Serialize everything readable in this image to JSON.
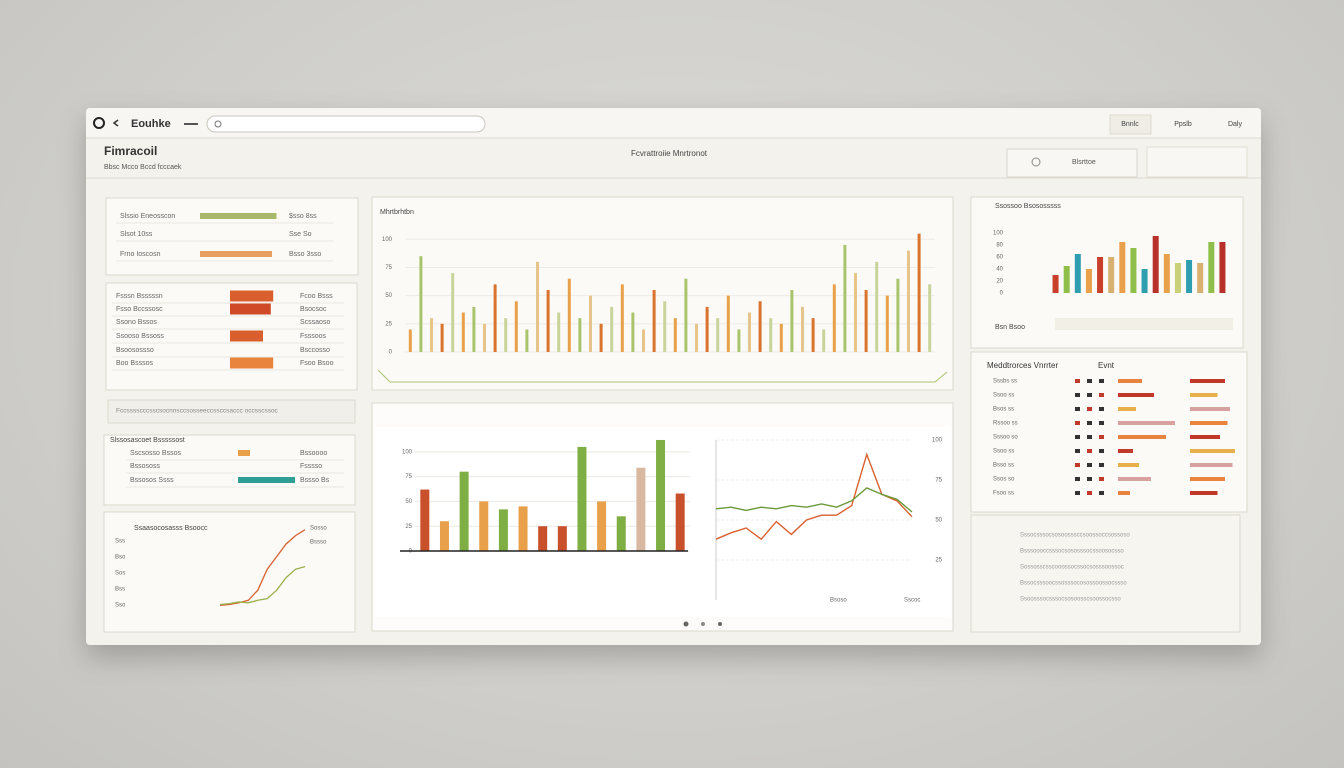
{
  "browser": {
    "title": "Eouhke",
    "buttons": [
      "Bnnlc",
      "Ppslb",
      "Daly"
    ]
  },
  "header": {
    "title": "Fimracoil",
    "subtitle": "Bbsc  Mcco  Bccd  fcccaek",
    "center": "Fcvrattroiie Mnrtronot",
    "filter": "Blsrttoe"
  },
  "summary": {
    "rows": [
      {
        "label": "Slssio Eneosscon",
        "amount": "$sso 8ss",
        "share": 85,
        "color": "#a8b86a"
      },
      {
        "label": "Slsot 10ss",
        "amount": "Sse So"
      },
      {
        "label": "Frno Ioscosn",
        "amount": "Bsso 3sso",
        "share": 80,
        "color": "#e8a060"
      }
    ]
  },
  "ranking": {
    "rows": [
      {
        "label": "Fsssn Bsssssn",
        "amount": "Fcoo Bsss",
        "share": 72,
        "color": "#d9602e"
      },
      {
        "label": "Fsso Bccssosc",
        "amount": "Bsocsoc",
        "share": 68,
        "color": "#d04a28"
      },
      {
        "label": "Ssono Bssos",
        "amount": "Scssaoso"
      },
      {
        "label": "Ssooso Bssoss",
        "amount": "Fsssoos",
        "share": 55,
        "color": "#d9602e"
      },
      {
        "label": "Bsoosossso",
        "amount": "Bsccosso"
      },
      {
        "label": "Boo Bsssos",
        "amount": "Fsoo Bsoo",
        "share": 72,
        "color": "#e8843e"
      }
    ]
  },
  "strip": "Fccsssscccsscsocnnsccsosseeccssccsaccc occsscssoc",
  "accounts": {
    "title": "Slssosascoet    Bsssssost",
    "rows": [
      {
        "label": "Sscsosso Bssos",
        "amount": "Bssoooo",
        "share": 20,
        "color": "#e8a04a"
      },
      {
        "label": "Bssososs",
        "amount": "Fsssso"
      },
      {
        "label": "Bssosos Ssss",
        "amount": "Bssso Bs",
        "share": 95,
        "color": "#2f9e94"
      }
    ]
  },
  "trend": {
    "title": "Ssaasocosasss Bsoocc",
    "ylim": [
      0,
      100
    ],
    "ylabels": [
      "Sss",
      "Bso",
      "Sos",
      "Bss",
      "Sso"
    ],
    "series": [
      {
        "name": "Sosso",
        "color": "#d9602e",
        "values": [
          2,
          3,
          5,
          8,
          20,
          45,
          60,
          75,
          85,
          92
        ]
      },
      {
        "name": "Bssso",
        "color": "#9ab04a",
        "values": [
          3,
          4,
          6,
          5,
          8,
          10,
          20,
          35,
          45,
          48
        ]
      }
    ]
  },
  "main_chart": {
    "type": "bar",
    "title": "Mhrtbrhtbn",
    "ylim": [
      0,
      110
    ],
    "yticks": [
      0,
      25,
      50,
      75,
      100
    ],
    "grid": true,
    "colors": [
      "#e8a04a",
      "#a9c46c",
      "#e6c48a",
      "#d9732e",
      "#c8d49a"
    ],
    "values": [
      20,
      85,
      30,
      25,
      70,
      35,
      40,
      25,
      60,
      30,
      45,
      20,
      80,
      55,
      35,
      65,
      30,
      50,
      25,
      40,
      60,
      35,
      20,
      55,
      45,
      30,
      65,
      25,
      40,
      30,
      50,
      20,
      35,
      45,
      30,
      25,
      55,
      40,
      30,
      20,
      60,
      95,
      70,
      55,
      80,
      50,
      65,
      90,
      105,
      60
    ]
  },
  "lower_chart": {
    "type": "bar",
    "ylim": [
      0,
      115
    ],
    "yticks": [
      0,
      25,
      50,
      75,
      100
    ],
    "grid": true,
    "values": [
      62,
      30,
      80,
      50,
      42,
      45,
      25,
      25,
      105,
      50,
      35,
      84,
      112,
      58
    ],
    "colors": [
      "#c8502a",
      "#e8a04a",
      "#7fae44",
      "#e8a04a",
      "#7fae44",
      "#e8a04a",
      "#c8502a",
      "#c8502a",
      "#7fae44",
      "#e8a04a",
      "#7fae44",
      "#d8b8a0",
      "#7fae44",
      "#c8502a"
    ]
  },
  "line_chart": {
    "type": "line",
    "ylim": [
      0,
      100
    ],
    "yticks": [
      25,
      50,
      75,
      100
    ],
    "grid": true,
    "series": [
      {
        "name": "Bsoso",
        "color": "#d9602e",
        "values": [
          38,
          42,
          45,
          38,
          49,
          41,
          50,
          53,
          53,
          59,
          91,
          66,
          62,
          52
        ]
      },
      {
        "name": "Sscoc",
        "color": "#6a9a3a",
        "values": [
          57,
          58,
          56,
          58,
          57,
          59,
          58,
          60,
          58,
          62,
          70,
          66,
          63,
          55
        ]
      }
    ]
  },
  "side_chart": {
    "type": "bar",
    "title": "Ssossoo Bsososssss",
    "ylim": [
      0,
      100
    ],
    "yticks": [
      0,
      20,
      40,
      60,
      80,
      100
    ],
    "footer": "Bsn  Bsoo",
    "values": [
      30,
      45,
      65,
      40,
      60,
      60,
      85,
      75,
      40,
      95,
      65,
      50,
      55,
      50,
      85,
      85
    ],
    "colors": [
      "#c8402a",
      "#8fbf4a",
      "#2f9eb0",
      "#e8a04a",
      "#c8402a",
      "#d8b070",
      "#e8a04a",
      "#8fbf4a",
      "#2f9eb0",
      "#b8302a",
      "#e8a04a",
      "#c8d07a",
      "#2f9eb0",
      "#d8b070",
      "#8fbf4a",
      "#b8302a"
    ]
  },
  "events": {
    "title": "Meddtrorces Vnrrter",
    "column": "Evnt",
    "colors": [
      "#e8843e",
      "#c0392b",
      "#e8b04a",
      "#d9a0a0"
    ],
    "rows": [
      {
        "label": "Sssbs ss",
        "a": 40,
        "b": 70
      },
      {
        "label": "Ssoo ss",
        "a": 60,
        "b": 55
      },
      {
        "label": "Bsos ss",
        "a": 30,
        "b": 80
      },
      {
        "label": "Rssoo ss",
        "a": 95,
        "b": 75
      },
      {
        "label": "Sssoo so",
        "a": 80,
        "b": 60
      },
      {
        "label": "Ssoo ss",
        "a": 25,
        "b": 90
      },
      {
        "label": "Bsso ss",
        "a": 35,
        "b": 85
      },
      {
        "label": "Ssos so",
        "a": 55,
        "b": 70
      },
      {
        "label": "Fsoo ss",
        "a": 20,
        "b": 55
      }
    ]
  },
  "notes": [
    "Sssocsssocsosoosssccsoossoccsossoso",
    "Bsssoooccsssocsososssocssoosocsso",
    "Sossosscsscooossocssocsosssoossoc",
    "Bssocsssoocssosssocosossoossocssso",
    "Ssoosssocsssocsosoosscsoossocsso"
  ]
}
